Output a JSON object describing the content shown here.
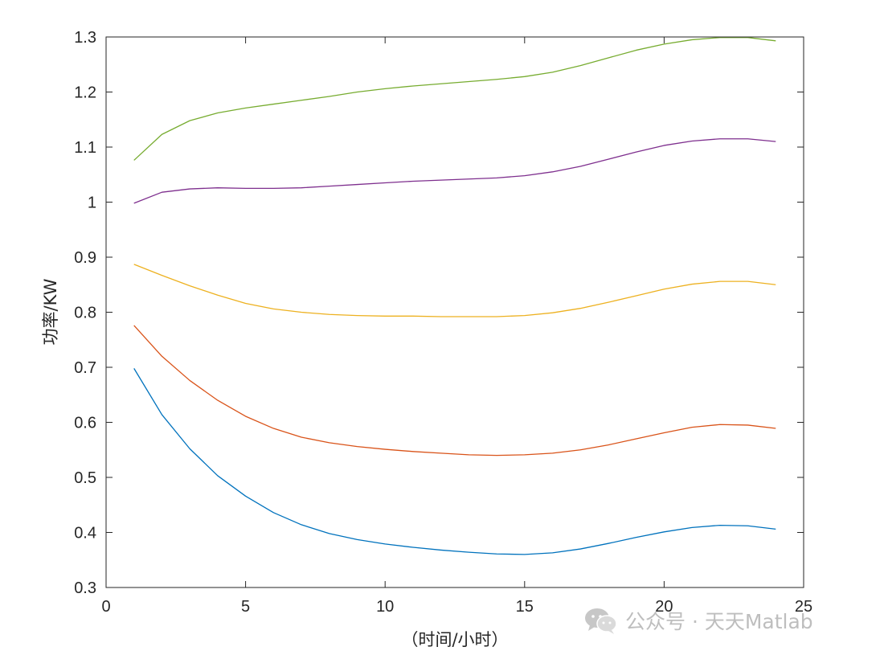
{
  "chart_data": {
    "type": "line",
    "title": "",
    "xlabel": "（时间/小时）",
    "ylabel": "功率/KW",
    "xlim": [
      0,
      25
    ],
    "ylim": [
      0.3,
      1.3
    ],
    "xticks": [
      0,
      5,
      10,
      15,
      20,
      25
    ],
    "yticks": [
      0.3,
      0.4,
      0.5,
      0.6,
      0.7,
      0.8,
      0.9,
      1.0,
      1.1,
      1.2,
      1.3
    ],
    "xtick_labels": [
      "0",
      "5",
      "10",
      "15",
      "20",
      "25"
    ],
    "ytick_labels": [
      "0.3",
      "0.4",
      "0.5",
      "0.6",
      "0.7",
      "0.8",
      "0.9",
      "1",
      "1.1",
      "1.2",
      "1.3"
    ],
    "grid": false,
    "x": [
      1,
      2,
      3,
      4,
      5,
      6,
      7,
      8,
      9,
      10,
      11,
      12,
      13,
      14,
      15,
      16,
      17,
      18,
      19,
      20,
      21,
      22,
      23,
      24
    ],
    "series": [
      {
        "color": "#0072BD",
        "values": [
          0.698,
          0.614,
          0.552,
          0.503,
          0.466,
          0.436,
          0.414,
          0.398,
          0.387,
          0.379,
          0.373,
          0.368,
          0.364,
          0.361,
          0.36,
          0.363,
          0.37,
          0.38,
          0.391,
          0.401,
          0.409,
          0.413,
          0.412,
          0.406
        ]
      },
      {
        "color": "#D95319",
        "values": [
          0.776,
          0.72,
          0.676,
          0.64,
          0.611,
          0.589,
          0.573,
          0.563,
          0.556,
          0.551,
          0.547,
          0.544,
          0.541,
          0.54,
          0.541,
          0.544,
          0.55,
          0.559,
          0.57,
          0.581,
          0.591,
          0.596,
          0.595,
          0.589
        ]
      },
      {
        "color": "#EDB120",
        "values": [
          0.887,
          0.867,
          0.848,
          0.831,
          0.816,
          0.806,
          0.8,
          0.796,
          0.794,
          0.793,
          0.793,
          0.792,
          0.792,
          0.792,
          0.794,
          0.799,
          0.807,
          0.818,
          0.83,
          0.842,
          0.851,
          0.856,
          0.856,
          0.85
        ]
      },
      {
        "color": "#7E2F8E",
        "values": [
          0.998,
          1.018,
          1.024,
          1.026,
          1.025,
          1.025,
          1.026,
          1.029,
          1.032,
          1.035,
          1.038,
          1.04,
          1.042,
          1.044,
          1.048,
          1.055,
          1.065,
          1.078,
          1.091,
          1.103,
          1.111,
          1.115,
          1.115,
          1.11
        ]
      },
      {
        "color": "#77AC30",
        "values": [
          1.076,
          1.123,
          1.148,
          1.162,
          1.171,
          1.178,
          1.185,
          1.192,
          1.2,
          1.206,
          1.211,
          1.215,
          1.219,
          1.223,
          1.228,
          1.236,
          1.248,
          1.262,
          1.276,
          1.287,
          1.295,
          1.299,
          1.299,
          1.293
        ]
      }
    ]
  },
  "watermark": {
    "icon": "wechat-icon",
    "text": "公众号 · 天天Matlab"
  }
}
